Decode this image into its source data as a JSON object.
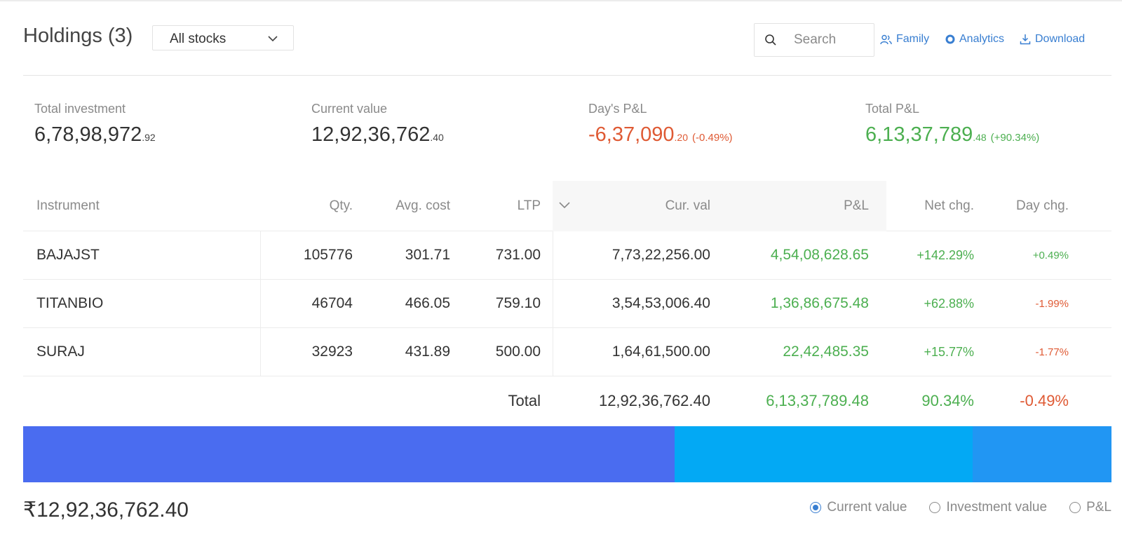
{
  "header": {
    "title": "Holdings (3)",
    "filter_value": "All stocks",
    "search_placeholder": "Search",
    "links": {
      "family": "Family",
      "analytics": "Analytics",
      "download": "Download"
    }
  },
  "summary": {
    "total_investment": {
      "label": "Total investment",
      "int": "6,78,98,972",
      "dec": ".92"
    },
    "current_value": {
      "label": "Current value",
      "int": "12,92,36,762",
      "dec": ".40"
    },
    "days_pnl": {
      "label": "Day's P&L",
      "int": "-6,37,090",
      "dec": ".20",
      "pct": "(-0.49%)"
    },
    "total_pnl": {
      "label": "Total P&L",
      "int": "6,13,37,789",
      "dec": ".48",
      "pct": "(+90.34%)"
    }
  },
  "table": {
    "columns": [
      "Instrument",
      "Qty.",
      "Avg. cost",
      "LTP",
      "Cur. val",
      "P&L",
      "Net chg.",
      "Day chg."
    ],
    "rows": [
      {
        "instrument": "BAJAJST",
        "qty": "105776",
        "avg": "301.71",
        "ltp": "731.00",
        "cur": "7,73,22,256.00",
        "pnl": "4,54,08,628.65",
        "net": "+142.29%",
        "day": "+0.49%",
        "day_positive": true
      },
      {
        "instrument": "TITANBIO",
        "qty": "46704",
        "avg": "466.05",
        "ltp": "759.10",
        "cur": "3,54,53,006.40",
        "pnl": "1,36,86,675.48",
        "net": "+62.88%",
        "day": "-1.99%",
        "day_positive": false
      },
      {
        "instrument": "SURAJ",
        "qty": "32923",
        "avg": "431.89",
        "ltp": "500.00",
        "cur": "1,64,61,500.00",
        "pnl": "22,42,485.35",
        "net": "+15.77%",
        "day": "-1.77%",
        "day_positive": false
      }
    ],
    "total": {
      "label": "Total",
      "cur": "12,92,36,762.40",
      "pnl": "6,13,37,789.48",
      "net": "90.34%",
      "day": "-0.49%"
    }
  },
  "allocation": {
    "segments": [
      {
        "name": "BAJAJST",
        "fraction": 0.5983,
        "color": "#4a6cf0"
      },
      {
        "name": "TITANBIO",
        "fraction": 0.2743,
        "color": "#03a9f4"
      },
      {
        "name": "SURAJ",
        "fraction": 0.1274,
        "color": "#2196f3"
      }
    ],
    "total_display": "₹12,92,36,762.40",
    "modes": [
      "Current value",
      "Investment value",
      "P&L"
    ],
    "selected_mode": "Current value"
  },
  "colors": {
    "accent": "#387ed1",
    "positive": "#4caf50",
    "negative": "#df5a34"
  }
}
